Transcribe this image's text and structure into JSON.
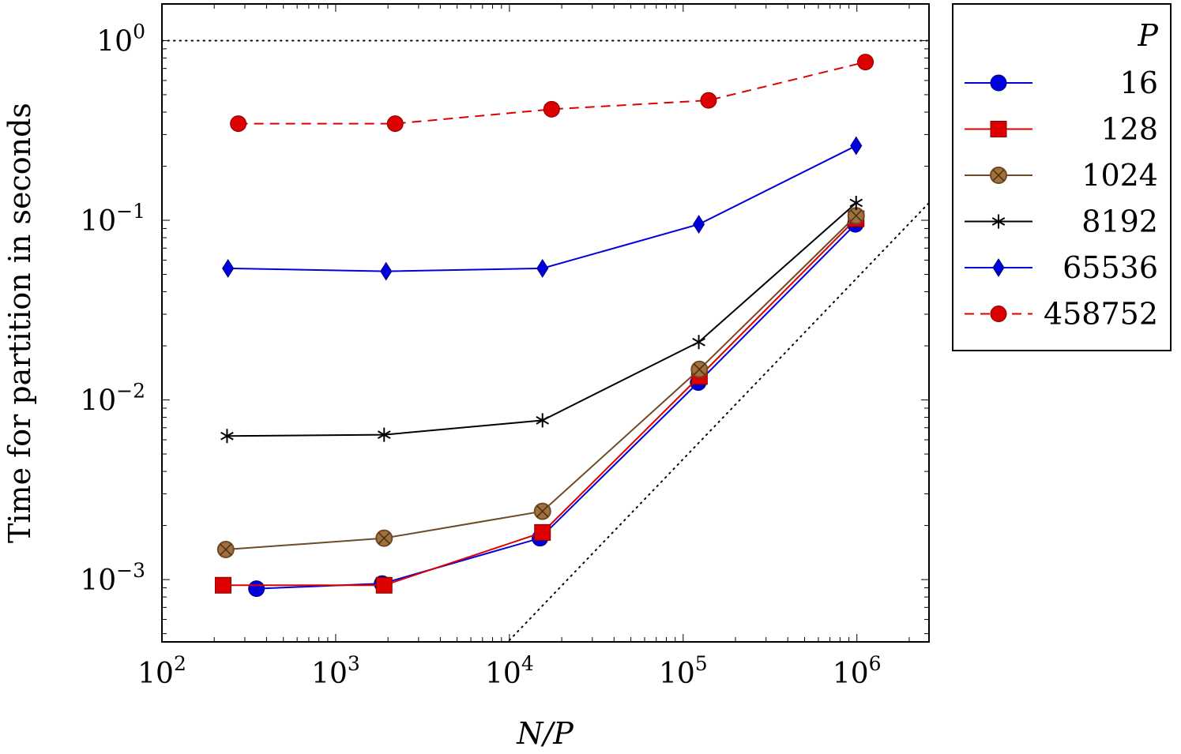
{
  "chart_data": {
    "type": "line",
    "xlabel": "N/P",
    "ylabel": "Time for partition in seconds",
    "x_scale": "log",
    "y_scale": "log",
    "xlim": [
      100,
      2600000
    ],
    "ylim": [
      0.00045,
      1.6
    ],
    "x_ticks": [
      {
        "value": 100,
        "base": "10",
        "exp": "2"
      },
      {
        "value": 1000,
        "base": "10",
        "exp": "3"
      },
      {
        "value": 10000,
        "base": "10",
        "exp": "4"
      },
      {
        "value": 100000,
        "base": "10",
        "exp": "5"
      },
      {
        "value": 1000000,
        "base": "10",
        "exp": "6"
      }
    ],
    "y_ticks": [
      {
        "value": 1,
        "base": "10",
        "exp": "0"
      },
      {
        "value": 0.1,
        "base": "10",
        "exp": "−1"
      },
      {
        "value": 0.01,
        "base": "10",
        "exp": "−2"
      },
      {
        "value": 0.001,
        "base": "10",
        "exp": "−3"
      }
    ],
    "legend": {
      "title": "P",
      "placement": "right, outside plot"
    },
    "reference_lines": [
      {
        "kind": "horizontal",
        "y": 1.0,
        "style": "dotted",
        "color": "#000000"
      },
      {
        "kind": "linear",
        "points": [
          [
            10000,
            0.00046
          ],
          [
            2600000,
            0.125
          ]
        ],
        "style": "dotted",
        "color": "#000000"
      }
    ],
    "series": [
      {
        "name": "16",
        "color": "#0000dd",
        "marker": "circle",
        "dash": "solid",
        "x": [
          350,
          1850,
          15000,
          122000,
          980000
        ],
        "y": [
          0.00089,
          0.00095,
          0.0017,
          0.0125,
          0.095
        ]
      },
      {
        "name": "128",
        "color": "#dd0000",
        "marker": "square",
        "dash": "solid",
        "x": [
          225,
          1900,
          15500,
          124000,
          990000
        ],
        "y": [
          0.00093,
          0.00093,
          0.00183,
          0.0135,
          0.102
        ]
      },
      {
        "name": "1024",
        "color": "#6f4a25",
        "marker": "otimes",
        "dash": "solid",
        "x": [
          233,
          1900,
          15500,
          124000,
          990000
        ],
        "y": [
          0.00147,
          0.0017,
          0.0024,
          0.0148,
          0.106
        ]
      },
      {
        "name": "8192",
        "color": "#000000",
        "marker": "asterisk",
        "dash": "solid",
        "x": [
          237,
          1900,
          15500,
          123000,
          990000
        ],
        "y": [
          0.0063,
          0.0064,
          0.0077,
          0.021,
          0.125
        ]
      },
      {
        "name": "65536",
        "color": "#0000dd",
        "marker": "diamond",
        "dash": "solid",
        "x": [
          240,
          1950,
          15500,
          123000,
          990000
        ],
        "y": [
          0.054,
          0.052,
          0.054,
          0.095,
          0.26
        ]
      },
      {
        "name": "458752",
        "color": "#dd0000",
        "marker": "circle",
        "dash": "dashed",
        "x": [
          275,
          2200,
          17500,
          140000,
          1120000
        ],
        "y": [
          0.345,
          0.345,
          0.415,
          0.465,
          0.76
        ]
      }
    ]
  }
}
